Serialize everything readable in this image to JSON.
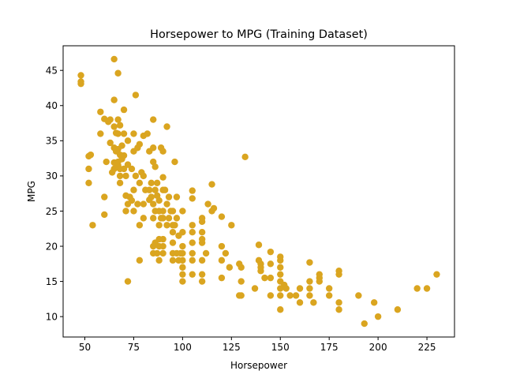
{
  "chart_data": {
    "type": "scatter",
    "title": "Horsepower to MPG (Training Dataset)",
    "xlabel": "Horsepower",
    "ylabel": "MPG",
    "xlim": [
      38.9,
      239.1
    ],
    "ylim": [
      7.1,
      48.5
    ],
    "xticks": [
      50,
      75,
      100,
      125,
      150,
      175,
      200,
      225
    ],
    "yticks": [
      10,
      15,
      20,
      25,
      30,
      35,
      40,
      45
    ],
    "grid": false,
    "legend": "none",
    "series": [
      {
        "color": "#daa520",
        "points": [
          [
            48,
            44.3
          ],
          [
            48,
            43.4
          ],
          [
            48,
            43.1
          ],
          [
            52,
            32.8
          ],
          [
            52,
            31.0
          ],
          [
            52,
            29.0
          ],
          [
            53,
            33.0
          ],
          [
            54,
            23.0
          ],
          [
            58,
            39.1
          ],
          [
            58,
            36.0
          ],
          [
            60,
            27.0
          ],
          [
            60,
            24.5
          ],
          [
            60,
            38.1
          ],
          [
            61,
            32.0
          ],
          [
            62,
            37.7
          ],
          [
            63,
            38.0
          ],
          [
            63,
            34.7
          ],
          [
            64,
            30.5
          ],
          [
            65,
            46.6
          ],
          [
            65,
            40.8
          ],
          [
            65,
            37.0
          ],
          [
            65,
            34.0
          ],
          [
            65,
            31.9
          ],
          [
            65,
            31.0
          ],
          [
            66,
            36.1
          ],
          [
            66,
            33.5
          ],
          [
            67,
            44.6
          ],
          [
            67,
            38.0
          ],
          [
            67,
            36.0
          ],
          [
            67,
            33.8
          ],
          [
            67,
            32.0
          ],
          [
            67,
            31.5
          ],
          [
            68,
            37.2
          ],
          [
            68,
            33.0
          ],
          [
            68,
            30.0
          ],
          [
            68,
            29.0
          ],
          [
            68,
            31.0
          ],
          [
            69,
            34.3
          ],
          [
            69,
            32.4
          ],
          [
            70,
            39.4
          ],
          [
            70,
            36.0
          ],
          [
            70,
            32.9
          ],
          [
            70,
            31.0
          ],
          [
            71,
            30.0
          ],
          [
            71,
            27.2
          ],
          [
            71,
            25.0
          ],
          [
            72,
            35.0
          ],
          [
            72,
            31.6
          ],
          [
            72,
            26.0
          ],
          [
            72,
            15.0
          ],
          [
            73,
            27.0
          ],
          [
            74,
            31.0
          ],
          [
            74,
            26.5
          ],
          [
            75,
            36.0
          ],
          [
            75,
            33.5
          ],
          [
            75,
            28.0
          ],
          [
            75,
            25.0
          ],
          [
            76,
            41.5
          ],
          [
            76,
            30.0
          ],
          [
            77,
            34.0
          ],
          [
            77,
            26.0
          ],
          [
            78,
            34.5
          ],
          [
            78,
            29.0
          ],
          [
            78,
            23.0
          ],
          [
            78,
            18.0
          ],
          [
            79,
            30.5
          ],
          [
            80,
            35.7
          ],
          [
            80,
            30.0
          ],
          [
            80,
            26.0
          ],
          [
            80,
            24.0
          ],
          [
            81,
            28.0
          ],
          [
            82,
            36.0
          ],
          [
            83,
            33.5
          ],
          [
            83,
            28.0
          ],
          [
            83,
            26.6
          ],
          [
            84,
            29.0
          ],
          [
            84,
            27.0
          ],
          [
            85,
            38.0
          ],
          [
            85,
            34.0
          ],
          [
            85,
            32.0
          ],
          [
            85,
            26.0
          ],
          [
            85,
            24.0
          ],
          [
            85,
            20.0
          ],
          [
            85,
            19.0
          ],
          [
            86,
            31.3
          ],
          [
            86,
            28.0
          ],
          [
            86,
            25.0
          ],
          [
            86,
            20.5
          ],
          [
            87,
            29.0
          ],
          [
            87,
            27.2
          ],
          [
            87,
            19.0
          ],
          [
            88,
            26.5
          ],
          [
            88,
            25.0
          ],
          [
            88,
            23.0
          ],
          [
            88,
            21.0
          ],
          [
            88,
            20.0
          ],
          [
            88,
            18.0
          ],
          [
            89,
            34.0
          ],
          [
            89,
            24.0
          ],
          [
            90,
            33.5
          ],
          [
            90,
            29.8
          ],
          [
            90,
            28.0
          ],
          [
            90,
            25.0
          ],
          [
            90,
            24.0
          ],
          [
            90,
            21.0
          ],
          [
            90,
            20.0
          ],
          [
            90,
            19.0
          ],
          [
            91,
            28.0
          ],
          [
            92,
            37.0
          ],
          [
            92,
            26.0
          ],
          [
            92,
            23.0
          ],
          [
            93,
            27.0
          ],
          [
            93,
            24.0
          ],
          [
            94,
            25.0
          ],
          [
            95,
            25.0
          ],
          [
            95,
            23.0
          ],
          [
            95,
            22.0
          ],
          [
            95,
            20.5
          ],
          [
            95,
            19.0
          ],
          [
            95,
            18.0
          ],
          [
            96,
            32.0
          ],
          [
            96,
            23.0
          ],
          [
            97,
            27.0
          ],
          [
            97,
            24.0
          ],
          [
            97,
            19.0
          ],
          [
            98,
            21.5
          ],
          [
            98,
            18.0
          ],
          [
            99,
            19.0
          ],
          [
            100,
            25.0
          ],
          [
            100,
            22.0
          ],
          [
            100,
            20.0
          ],
          [
            100,
            19.0
          ],
          [
            100,
            18.0
          ],
          [
            100,
            17.0
          ],
          [
            100,
            16.0
          ],
          [
            100,
            15.0
          ],
          [
            105,
            27.9
          ],
          [
            105,
            26.8
          ],
          [
            105,
            23.0
          ],
          [
            105,
            22.0
          ],
          [
            105,
            20.5
          ],
          [
            105,
            19.0
          ],
          [
            105,
            18.0
          ],
          [
            105,
            16.0
          ],
          [
            110,
            24.0
          ],
          [
            110,
            23.5
          ],
          [
            110,
            22.0
          ],
          [
            110,
            21.0
          ],
          [
            110,
            20.5
          ],
          [
            110,
            18.0
          ],
          [
            110,
            16.0
          ],
          [
            110,
            15.0
          ],
          [
            112,
            19.0
          ],
          [
            113,
            26.0
          ],
          [
            115,
            28.8
          ],
          [
            115,
            25.0
          ],
          [
            116,
            25.4
          ],
          [
            120,
            24.2
          ],
          [
            120,
            20.0
          ],
          [
            120,
            18.0
          ],
          [
            120,
            15.5
          ],
          [
            122,
            19.0
          ],
          [
            124,
            17.0
          ],
          [
            125,
            23.0
          ],
          [
            129,
            17.5
          ],
          [
            129,
            13.0
          ],
          [
            130,
            17.0
          ],
          [
            130,
            15.0
          ],
          [
            130,
            13.0
          ],
          [
            132,
            32.7
          ],
          [
            137,
            14.0
          ],
          [
            139,
            20.2
          ],
          [
            139,
            18.0
          ],
          [
            140,
            17.5
          ],
          [
            140,
            17.0
          ],
          [
            140,
            16.5
          ],
          [
            142,
            15.5
          ],
          [
            145,
            19.2
          ],
          [
            145,
            17.5
          ],
          [
            145,
            15.5
          ],
          [
            145,
            13.0
          ],
          [
            150,
            18.5
          ],
          [
            150,
            18.0
          ],
          [
            150,
            17.0
          ],
          [
            150,
            16.0
          ],
          [
            150,
            15.0
          ],
          [
            150,
            14.0
          ],
          [
            150,
            13.0
          ],
          [
            150,
            11.0
          ],
          [
            152,
            14.5
          ],
          [
            153,
            14.0
          ],
          [
            155,
            13.0
          ],
          [
            158,
            13.0
          ],
          [
            160,
            14.0
          ],
          [
            160,
            12.0
          ],
          [
            165,
            17.7
          ],
          [
            165,
            15.0
          ],
          [
            165,
            14.0
          ],
          [
            165,
            13.0
          ],
          [
            167,
            12.0
          ],
          [
            170,
            16.0
          ],
          [
            170,
            15.5
          ],
          [
            170,
            15.0
          ],
          [
            175,
            14.0
          ],
          [
            175,
            13.0
          ],
          [
            180,
            16.5
          ],
          [
            180,
            16.0
          ],
          [
            180,
            12.0
          ],
          [
            180,
            11.0
          ],
          [
            190,
            13.0
          ],
          [
            193,
            9.0
          ],
          [
            198,
            12.0
          ],
          [
            200,
            10.0
          ],
          [
            210,
            11.0
          ],
          [
            220,
            14.0
          ],
          [
            225,
            14.0
          ],
          [
            230,
            16.0
          ]
        ]
      }
    ]
  }
}
